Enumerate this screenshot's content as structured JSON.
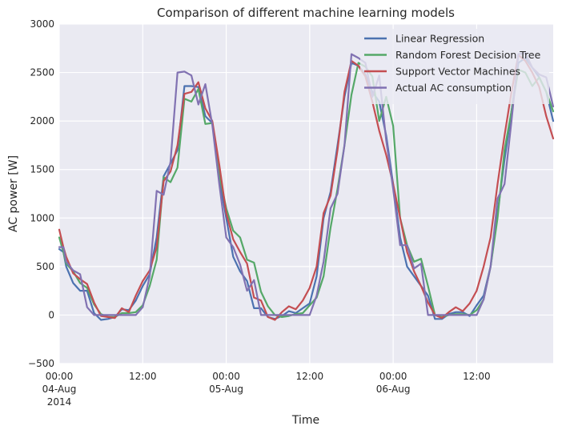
{
  "chart_data": {
    "type": "line",
    "title": "Comparison of different machine learning models",
    "xlabel": "Time",
    "ylabel": "AC power [W]",
    "x_unit": "hours since 2014-08-04 00:00",
    "xlim": [
      0,
      71
    ],
    "ylim": [
      -500,
      3000
    ],
    "yticks": [
      -500,
      0,
      500,
      1000,
      1500,
      2000,
      2500,
      3000
    ],
    "xticks": [
      {
        "x": 0,
        "lines": [
          "00:00",
          "04-Aug",
          "2014"
        ]
      },
      {
        "x": 12,
        "lines": [
          "12:00"
        ]
      },
      {
        "x": 24,
        "lines": [
          "00:00",
          "05-Aug"
        ]
      },
      {
        "x": 36,
        "lines": [
          "12:00"
        ]
      },
      {
        "x": 48,
        "lines": [
          "00:00",
          "06-Aug"
        ]
      },
      {
        "x": 60,
        "lines": [
          "12:00"
        ]
      }
    ],
    "grid": true,
    "legend_position": "top-right",
    "series": [
      {
        "name": "Linear Regression",
        "color": "#4c72b0",
        "points": [
          [
            0,
            680
          ],
          [
            0.6,
            650
          ],
          [
            1,
            500
          ],
          [
            2,
            330
          ],
          [
            3,
            250
          ],
          [
            4,
            250
          ],
          [
            5,
            20
          ],
          [
            6,
            -50
          ],
          [
            7,
            -40
          ],
          [
            8,
            -20
          ],
          [
            9,
            60
          ],
          [
            10,
            50
          ],
          [
            11,
            150
          ],
          [
            12,
            300
          ],
          [
            13,
            420
          ],
          [
            14,
            800
          ],
          [
            15,
            1430
          ],
          [
            16,
            1560
          ],
          [
            17,
            1700
          ],
          [
            18,
            2360
          ],
          [
            19,
            2360
          ],
          [
            20,
            2350
          ],
          [
            21,
            2050
          ],
          [
            22,
            1980
          ],
          [
            23,
            1400
          ],
          [
            24,
            1000
          ],
          [
            25,
            600
          ],
          [
            26,
            450
          ],
          [
            27,
            350
          ],
          [
            28,
            70
          ],
          [
            29,
            70
          ],
          [
            30,
            -20
          ],
          [
            31,
            -40
          ],
          [
            32,
            -10
          ],
          [
            33,
            40
          ],
          [
            34,
            20
          ],
          [
            35,
            70
          ],
          [
            36,
            120
          ],
          [
            37,
            400
          ],
          [
            38,
            1000
          ],
          [
            39,
            1270
          ],
          [
            40,
            1750
          ],
          [
            41,
            2250
          ],
          [
            42,
            2600
          ],
          [
            43,
            2570
          ],
          [
            44,
            2480
          ],
          [
            45,
            2300
          ],
          [
            46,
            2200
          ],
          [
            47,
            1850
          ],
          [
            48,
            1350
          ],
          [
            49,
            800
          ],
          [
            50,
            500
          ],
          [
            51,
            400
          ],
          [
            52,
            300
          ],
          [
            53,
            200
          ],
          [
            54,
            -40
          ],
          [
            55,
            -40
          ],
          [
            56,
            10
          ],
          [
            57,
            30
          ],
          [
            58,
            30
          ],
          [
            59,
            -10
          ],
          [
            60,
            100
          ],
          [
            61,
            200
          ],
          [
            62,
            500
          ],
          [
            63,
            1050
          ],
          [
            64,
            1600
          ],
          [
            65,
            2100
          ],
          [
            66,
            2600
          ],
          [
            67,
            2650
          ],
          [
            68,
            2550
          ],
          [
            69,
            2450
          ],
          [
            70,
            2300
          ],
          [
            71,
            2000
          ]
        ]
      },
      {
        "name": "Random Forest Decision Tree",
        "color": "#55a868",
        "points": [
          [
            0,
            800
          ],
          [
            0.6,
            650
          ],
          [
            1,
            530
          ],
          [
            2,
            450
          ],
          [
            3,
            330
          ],
          [
            4,
            280
          ],
          [
            5,
            110
          ],
          [
            6,
            10
          ],
          [
            7,
            -20
          ],
          [
            8,
            -20
          ],
          [
            9,
            20
          ],
          [
            10,
            20
          ],
          [
            11,
            30
          ],
          [
            12,
            100
          ],
          [
            13,
            300
          ],
          [
            14,
            570
          ],
          [
            15,
            1420
          ],
          [
            16,
            1370
          ],
          [
            17,
            1520
          ],
          [
            18,
            2230
          ],
          [
            19,
            2200
          ],
          [
            20,
            2330
          ],
          [
            21,
            1970
          ],
          [
            22,
            1980
          ],
          [
            23,
            1450
          ],
          [
            24,
            1100
          ],
          [
            25,
            870
          ],
          [
            26,
            800
          ],
          [
            27,
            570
          ],
          [
            28,
            540
          ],
          [
            29,
            240
          ],
          [
            30,
            90
          ],
          [
            31,
            0
          ],
          [
            32,
            -20
          ],
          [
            33,
            -10
          ],
          [
            34,
            10
          ],
          [
            35,
            20
          ],
          [
            36,
            100
          ],
          [
            37,
            180
          ],
          [
            38,
            400
          ],
          [
            39,
            900
          ],
          [
            40,
            1300
          ],
          [
            41,
            1750
          ],
          [
            42,
            2270
          ],
          [
            43,
            2600
          ],
          [
            44,
            2560
          ],
          [
            45,
            2460
          ],
          [
            46,
            2000
          ],
          [
            47,
            2250
          ],
          [
            48,
            1950
          ],
          [
            49,
            1000
          ],
          [
            50,
            720
          ],
          [
            51,
            550
          ],
          [
            52,
            580
          ],
          [
            53,
            300
          ],
          [
            54,
            0
          ],
          [
            55,
            -20
          ],
          [
            56,
            0
          ],
          [
            57,
            10
          ],
          [
            58,
            10
          ],
          [
            59,
            0
          ],
          [
            60,
            50
          ],
          [
            61,
            160
          ],
          [
            62,
            500
          ],
          [
            63,
            1000
          ],
          [
            64,
            1700
          ],
          [
            65,
            2100
          ],
          [
            66,
            2530
          ],
          [
            67,
            2500
          ],
          [
            68,
            2360
          ],
          [
            69,
            2450
          ],
          [
            70,
            2300
          ],
          [
            71,
            2100
          ]
        ]
      },
      {
        "name": "Support Vector Machines",
        "color": "#c44e52",
        "points": [
          [
            0,
            880
          ],
          [
            0.6,
            700
          ],
          [
            1,
            600
          ],
          [
            2,
            430
          ],
          [
            3,
            370
          ],
          [
            4,
            320
          ],
          [
            5,
            130
          ],
          [
            6,
            -10
          ],
          [
            7,
            -20
          ],
          [
            8,
            -30
          ],
          [
            9,
            70
          ],
          [
            10,
            30
          ],
          [
            11,
            200
          ],
          [
            12,
            350
          ],
          [
            13,
            460
          ],
          [
            14,
            700
          ],
          [
            15,
            1380
          ],
          [
            16,
            1480
          ],
          [
            17,
            1750
          ],
          [
            18,
            2280
          ],
          [
            19,
            2300
          ],
          [
            20,
            2400
          ],
          [
            21,
            2130
          ],
          [
            22,
            2000
          ],
          [
            23,
            1550
          ],
          [
            24,
            1050
          ],
          [
            25,
            780
          ],
          [
            26,
            650
          ],
          [
            27,
            530
          ],
          [
            28,
            180
          ],
          [
            29,
            150
          ],
          [
            30,
            -20
          ],
          [
            31,
            -50
          ],
          [
            32,
            30
          ],
          [
            33,
            90
          ],
          [
            34,
            60
          ],
          [
            35,
            150
          ],
          [
            36,
            280
          ],
          [
            37,
            500
          ],
          [
            38,
            1050
          ],
          [
            39,
            1230
          ],
          [
            40,
            1700
          ],
          [
            41,
            2300
          ],
          [
            42,
            2620
          ],
          [
            43,
            2570
          ],
          [
            44,
            2460
          ],
          [
            45,
            2200
          ],
          [
            46,
            1900
          ],
          [
            47,
            1650
          ],
          [
            48,
            1350
          ],
          [
            49,
            1000
          ],
          [
            50,
            650
          ],
          [
            51,
            450
          ],
          [
            52,
            300
          ],
          [
            53,
            130
          ],
          [
            54,
            0
          ],
          [
            55,
            -30
          ],
          [
            56,
            30
          ],
          [
            57,
            80
          ],
          [
            58,
            40
          ],
          [
            59,
            120
          ],
          [
            60,
            250
          ],
          [
            61,
            500
          ],
          [
            62,
            800
          ],
          [
            63,
            1350
          ],
          [
            64,
            1850
          ],
          [
            65,
            2300
          ],
          [
            66,
            2680
          ],
          [
            67,
            2620
          ],
          [
            68,
            2500
          ],
          [
            69,
            2350
          ],
          [
            70,
            2050
          ],
          [
            71,
            1820
          ]
        ]
      },
      {
        "name": "Actual AC consumption",
        "color": "#8172b2",
        "points": [
          [
            0,
            700
          ],
          [
            0.6,
            700
          ],
          [
            1,
            550
          ],
          [
            2,
            460
          ],
          [
            3,
            420
          ],
          [
            4,
            80
          ],
          [
            5,
            0
          ],
          [
            6,
            0
          ],
          [
            7,
            0
          ],
          [
            8,
            0
          ],
          [
            9,
            0
          ],
          [
            10,
            0
          ],
          [
            11,
            0
          ],
          [
            12,
            80
          ],
          [
            13,
            400
          ],
          [
            14,
            1280
          ],
          [
            15,
            1240
          ],
          [
            16,
            1580
          ],
          [
            17,
            2500
          ],
          [
            18,
            2510
          ],
          [
            19,
            2470
          ],
          [
            20,
            2170
          ],
          [
            21,
            2380
          ],
          [
            22,
            1960
          ],
          [
            23,
            1350
          ],
          [
            24,
            800
          ],
          [
            25,
            700
          ],
          [
            26,
            520
          ],
          [
            27,
            250
          ],
          [
            28,
            360
          ],
          [
            29,
            0
          ],
          [
            30,
            0
          ],
          [
            31,
            0
          ],
          [
            32,
            0
          ],
          [
            33,
            0
          ],
          [
            34,
            0
          ],
          [
            35,
            0
          ],
          [
            36,
            0
          ],
          [
            37,
            200
          ],
          [
            38,
            550
          ],
          [
            39,
            1100
          ],
          [
            40,
            1250
          ],
          [
            41,
            1750
          ],
          [
            42,
            2690
          ],
          [
            43,
            2650
          ],
          [
            44,
            2600
          ],
          [
            45,
            2250
          ],
          [
            46,
            2470
          ],
          [
            47,
            1800
          ],
          [
            48,
            1300
          ],
          [
            49,
            720
          ],
          [
            50,
            720
          ],
          [
            51,
            480
          ],
          [
            52,
            530
          ],
          [
            53,
            0
          ],
          [
            54,
            0
          ],
          [
            55,
            0
          ],
          [
            56,
            0
          ],
          [
            57,
            0
          ],
          [
            58,
            0
          ],
          [
            59,
            0
          ],
          [
            60,
            0
          ],
          [
            61,
            160
          ],
          [
            62,
            500
          ],
          [
            63,
            1200
          ],
          [
            64,
            1350
          ],
          [
            65,
            2000
          ],
          [
            66,
            2690
          ],
          [
            67,
            2700
          ],
          [
            68,
            2550
          ],
          [
            69,
            2480
          ],
          [
            70,
            2450
          ],
          [
            71,
            2150
          ]
        ]
      }
    ]
  }
}
